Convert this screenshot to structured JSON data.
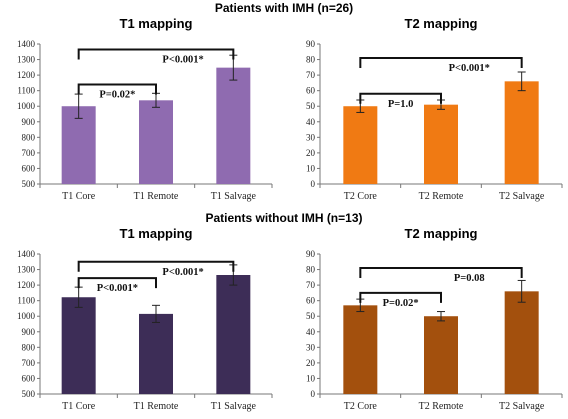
{
  "sections": [
    {
      "title": "Patients with IMH (n=26)"
    },
    {
      "title": "Patients without IMH (n=13)"
    }
  ],
  "chart_data": [
    {
      "type": "bar",
      "title": "T1 mapping",
      "categories": [
        "T1 Core",
        "T1 Remote",
        "T1 Salvage"
      ],
      "values": [
        1000,
        1038,
        1248
      ],
      "errors": [
        78,
        45,
        80
      ],
      "ylim": [
        500,
        1400
      ],
      "yticks": [
        500,
        600,
        700,
        800,
        900,
        1000,
        1100,
        1200,
        1300,
        1400
      ],
      "color": "#8f6bb0",
      "grid": false,
      "xlabel": "",
      "ylabel": "",
      "comparisons": [
        {
          "from": 0,
          "to": 1,
          "label": "P=0.02*",
          "level": 1140
        },
        {
          "from": 0,
          "to": 2,
          "label": "P<0.001*",
          "level": 1365
        }
      ]
    },
    {
      "type": "bar",
      "title": "T2 mapping",
      "categories": [
        "T2 Core",
        "T2 Remote",
        "T2 Salvage"
      ],
      "values": [
        50,
        51,
        66
      ],
      "errors": [
        4,
        3,
        6
      ],
      "ylim": [
        0,
        90
      ],
      "yticks": [
        0,
        10,
        20,
        30,
        40,
        50,
        60,
        70,
        80,
        90
      ],
      "color": "#f07a13",
      "grid": false,
      "xlabel": "",
      "ylabel": "",
      "comparisons": [
        {
          "from": 0,
          "to": 1,
          "label": "P=1.0",
          "level": 58
        },
        {
          "from": 0,
          "to": 2,
          "label": "P<0.001*",
          "level": 81
        }
      ]
    },
    {
      "type": "bar",
      "title": "T1 mapping",
      "categories": [
        "T1 Core",
        "T1 Remote",
        "T1 Salvage"
      ],
      "values": [
        1122,
        1015,
        1265
      ],
      "errors": [
        65,
        55,
        65
      ],
      "ylim": [
        500,
        1400
      ],
      "yticks": [
        500,
        600,
        700,
        800,
        900,
        1000,
        1100,
        1200,
        1300,
        1400
      ],
      "color": "#3d2d57",
      "grid": false,
      "xlabel": "",
      "ylabel": "",
      "comparisons": [
        {
          "from": 0,
          "to": 1,
          "label": "P<0.001*",
          "level": 1245
        },
        {
          "from": 0,
          "to": 2,
          "label": "P<0.001*",
          "level": 1350
        }
      ]
    },
    {
      "type": "bar",
      "title": "T2 mapping",
      "categories": [
        "T2 Core",
        "T2 Remote",
        "T2 Salvage"
      ],
      "values": [
        57,
        50,
        66
      ],
      "errors": [
        4,
        3,
        7
      ],
      "ylim": [
        0,
        90
      ],
      "yticks": [
        0,
        10,
        20,
        30,
        40,
        50,
        60,
        70,
        80,
        90
      ],
      "color": "#a3500d",
      "grid": false,
      "xlabel": "",
      "ylabel": "",
      "comparisons": [
        {
          "from": 0,
          "to": 1,
          "label": "P=0.02*",
          "level": 65
        },
        {
          "from": 0,
          "to": 2,
          "label": "P=0.08",
          "level": 81
        }
      ]
    }
  ]
}
